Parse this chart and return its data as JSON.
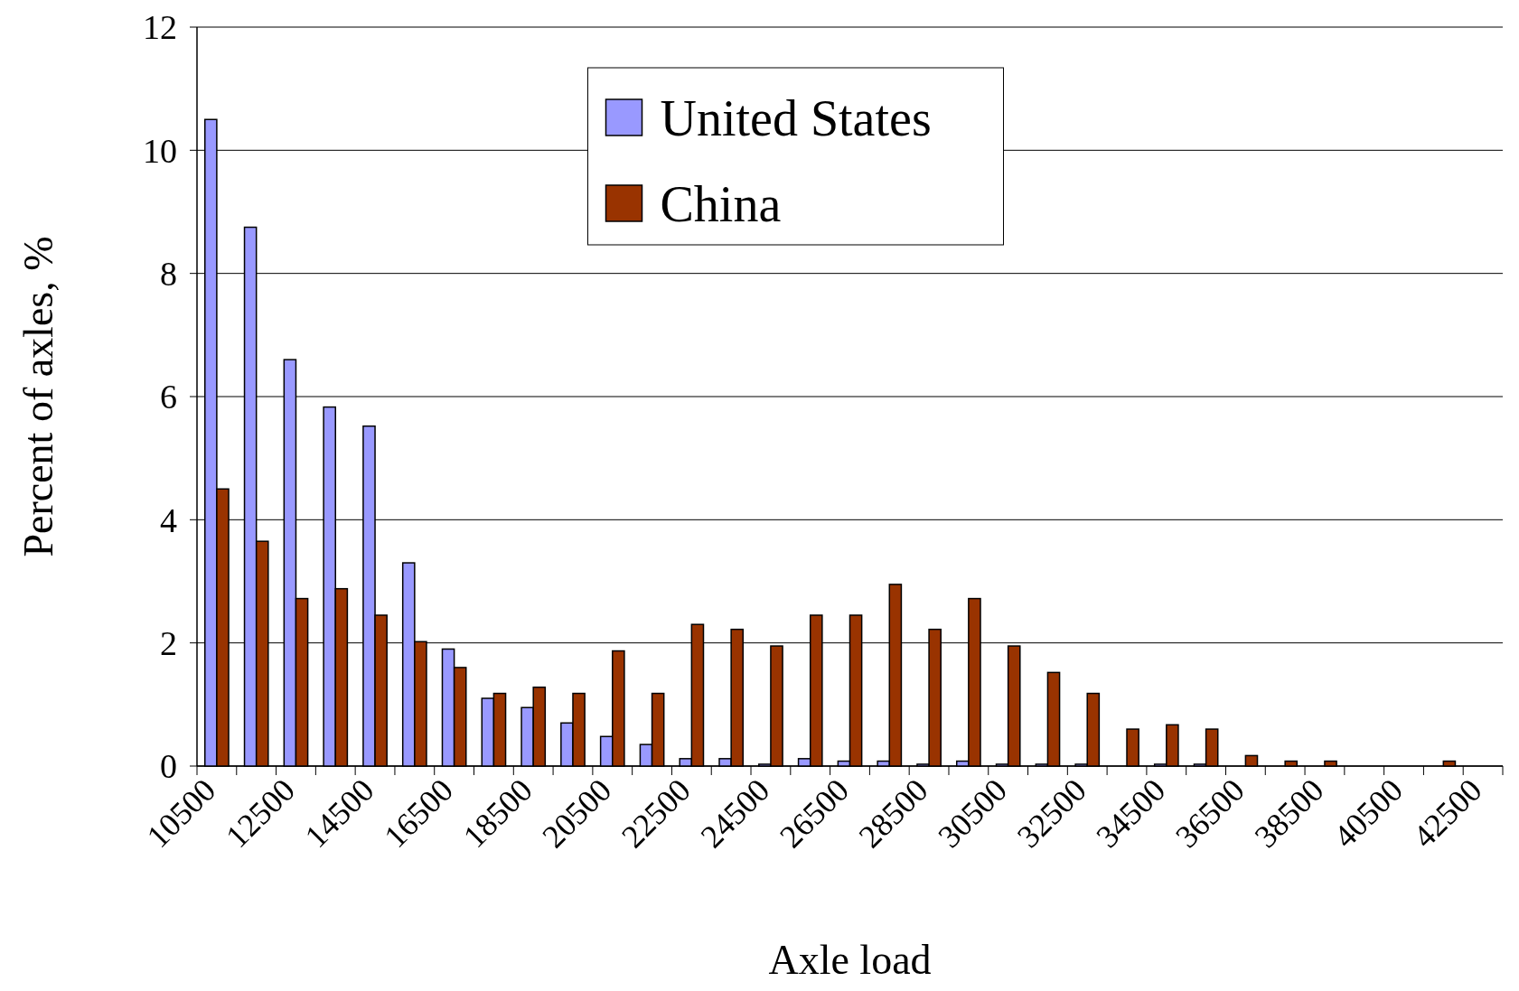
{
  "chart_data": {
    "type": "bar",
    "xlabel": "Axle load",
    "ylabel": "Percent of axles, %",
    "categories": [
      "10500",
      null,
      "12500",
      null,
      "14500",
      null,
      "16500",
      null,
      "18500",
      null,
      "20500",
      null,
      "22500",
      null,
      "24500",
      null,
      "26500",
      null,
      "28500",
      null,
      "30500",
      null,
      "32500",
      null,
      "34500",
      null,
      "36500",
      null,
      "38500",
      null,
      "40500",
      null,
      "42500"
    ],
    "series": [
      {
        "name": "United States",
        "color": "#9999ff",
        "values": [
          10.5,
          8.75,
          6.6,
          5.83,
          5.52,
          3.3,
          1.9,
          1.1,
          0.95,
          0.7,
          0.48,
          0.35,
          0.12,
          0.12,
          0.03,
          0.12,
          0.08,
          0.08,
          0.03,
          0.08,
          0.03,
          0.03,
          0.03,
          0,
          0.03,
          0.03,
          0,
          0,
          0,
          0,
          0,
          0,
          0
        ]
      },
      {
        "name": "China",
        "color": "#993300",
        "values": [
          4.5,
          3.65,
          2.72,
          2.88,
          2.45,
          2.02,
          1.6,
          1.18,
          1.28,
          1.18,
          1.87,
          1.18,
          2.3,
          2.22,
          1.95,
          2.45,
          2.45,
          2.95,
          2.22,
          2.72,
          1.95,
          1.52,
          1.18,
          0.6,
          0.67,
          0.6,
          0.17,
          0.08,
          0.08,
          0,
          0,
          0.08,
          0
        ]
      }
    ],
    "ylim": [
      0,
      12
    ],
    "yticks": [
      0,
      2,
      4,
      6,
      8,
      10,
      12
    ],
    "grid": "y",
    "legend": "top"
  }
}
